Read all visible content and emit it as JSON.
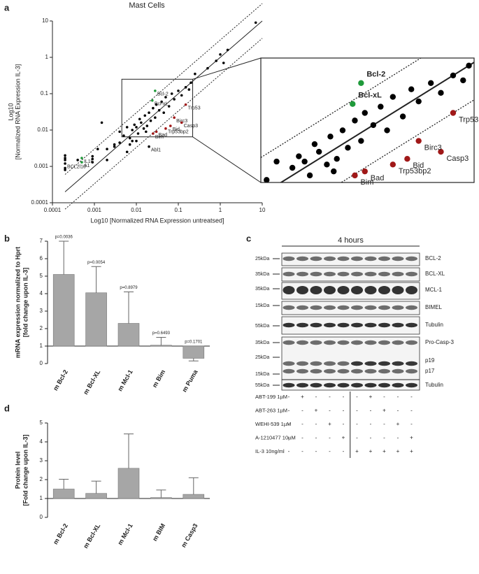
{
  "panels": [
    "a",
    "b",
    "c",
    "d"
  ],
  "chart_data": [
    {
      "type": "scatter",
      "title": "Mast Cells",
      "x_label": "Log10 [Normalized RNA Expression untreatsed]",
      "y_label": [
        "Log10",
        "[Normalized RNA Expression IL-3]"
      ],
      "log_x": true,
      "log_y": true,
      "xlim": [
        0.0001,
        10
      ],
      "ylim": [
        0.0001,
        10
      ],
      "xticks": [
        0.0001,
        0.001,
        0.01,
        0.1,
        1,
        10
      ],
      "yticks": [
        0.0001,
        0.001,
        0.01,
        0.1,
        1,
        10
      ],
      "zoom": {
        "xlim": [
          0.0045,
          0.22
        ],
        "ylim": [
          0.0065,
          0.25
        ]
      },
      "series": [
        {
          "color": "#000000",
          "x": [
            0.0002,
            0.02,
            0.0002,
            0.0002,
            0.0002,
            0.0002,
            0.0002,
            0.0004,
            0.0009,
            0.0009,
            0.0009,
            0.0012,
            0.0015,
            0.002,
            0.002,
            0.003,
            0.003,
            0.004,
            0.004,
            0.005,
            0.006,
            0.007,
            0.008,
            0.008,
            0.009,
            0.01,
            0.011,
            0.012,
            0.013,
            0.015,
            0.016,
            0.017,
            0.018,
            0.02,
            0.022,
            0.025,
            0.028,
            0.03,
            0.035,
            0.04,
            0.045,
            0.05,
            0.06,
            0.07,
            0.08,
            0.1,
            0.12,
            0.15,
            0.18,
            0.2,
            0.25,
            0.5,
            0.8,
            1,
            1.5,
            1.2,
            7,
            0.006,
            0.007,
            0.01
          ],
          "y": [
            0.0012,
            0.0035,
            0.0015,
            0.0017,
            0.002,
            0.0009,
            0.0008,
            0.0015,
            0.0013,
            0.0016,
            0.0019,
            0.003,
            0.016,
            0.0015,
            0.003,
            0.0035,
            0.004,
            0.0045,
            0.009,
            0.007,
            0.012,
            0.006,
            0.01,
            0.005,
            0.014,
            0.012,
            0.008,
            0.02,
            0.016,
            0.011,
            0.025,
            0.009,
            0.013,
            0.03,
            0.018,
            0.04,
            0.022,
            0.05,
            0.035,
            0.06,
            0.03,
            0.08,
            0.045,
            0.1,
            0.07,
            0.12,
            0.09,
            0.15,
            0.13,
            0.2,
            0.35,
            0.5,
            0.8,
            1.2,
            1.6,
            0.7,
            9,
            0.0025,
            0.004,
            0.005
          ],
          "labels": [
            "BCL2l10",
            "Abl1",
            null,
            null,
            null,
            null,
            null,
            null,
            null,
            null,
            null,
            null,
            null,
            null,
            null,
            null,
            null,
            null,
            null,
            null,
            null,
            null,
            null,
            null,
            null,
            null,
            null,
            null,
            null,
            null,
            null,
            null,
            null,
            null,
            null,
            null,
            null,
            null,
            null,
            null,
            null,
            null,
            null,
            null,
            null,
            null,
            null,
            null,
            null,
            null,
            null,
            null,
            null,
            null,
            null,
            null,
            null,
            null,
            null,
            null
          ]
        },
        {
          "color": "#1f9a3a",
          "x": [
            0.028,
            0.024,
            0.0005,
            0.0005
          ],
          "y": [
            0.12,
            0.065,
            0.0013,
            0.0017
          ],
          "labels": [
            "Bcl-2",
            "Bcl-xL",
            "A1",
            "IL10"
          ]
        },
        {
          "color": "#a01818",
          "x": [
            0.15,
            0.08,
            0.12,
            0.065,
            0.05,
            0.03,
            0.025
          ],
          "y": [
            0.05,
            0.022,
            0.016,
            0.013,
            0.011,
            0.009,
            0.008
          ],
          "labels": [
            "Trp53",
            "Birc3",
            "Casp3",
            "Bid",
            "Trp53bp2",
            "Bad",
            "Bim"
          ]
        }
      ]
    },
    {
      "type": "bar",
      "y_label": [
        "mRNA expression normalized to Hprt",
        "[fold change upon IL-3]"
      ],
      "categories": [
        "m Bcl-2",
        "m Bcl-XL",
        "m Mcl-1",
        "m Bim",
        "m Puma"
      ],
      "values": [
        5.1,
        4.05,
        2.3,
        1.05,
        0.3
      ],
      "errors": [
        1.9,
        1.5,
        1.8,
        0.45,
        0.15
      ],
      "annotations": [
        "p=0.0036",
        "p=0.0054",
        "p=0.8979",
        "p=0.6493",
        "p=0.1701"
      ],
      "baseline": 1,
      "color": "#a6a6a6",
      "ylim": [
        0,
        7
      ],
      "yticks": [
        0,
        1,
        2,
        3,
        4,
        5,
        6,
        7
      ]
    },
    {
      "type": "bar",
      "y_label": [
        "Protein level",
        "[Fold change upon IL-3]"
      ],
      "categories": [
        "m Bcl-2",
        "m Bcl-XL",
        "m Mcl-1",
        "m BIM",
        "m Casp3"
      ],
      "values": [
        1.5,
        1.27,
        2.6,
        1.05,
        1.22
      ],
      "errors": [
        0.52,
        0.65,
        1.82,
        0.4,
        0.88
      ],
      "baseline": 1,
      "color": "#a6a6a6",
      "ylim": [
        0,
        5
      ],
      "yticks": [
        0,
        1,
        2,
        3,
        4,
        5
      ]
    }
  ],
  "blot": {
    "header": "4 hours",
    "rows": [
      {
        "kda": "25kDa",
        "label": "BCL-2"
      },
      {
        "kda": "35kDa",
        "label": "BCL-XL"
      },
      {
        "kda": "35kDa",
        "label": "MCL-1"
      },
      {
        "kda": "15kDa",
        "label": "BIMEL"
      },
      {
        "kda": "55kDa",
        "label": "Tubulin"
      },
      {
        "kda": "35kDa",
        "label": "Pro-Casp-3"
      },
      {
        "kda": "25kDa",
        "label": "p19"
      },
      {
        "kda": "15kDa",
        "label": "p17"
      },
      {
        "kda": "55kDa",
        "label": "Tubulin"
      }
    ],
    "treatments": [
      {
        "name": "ABT-199 1µM",
        "marks": [
          "-",
          "+",
          "-",
          "-",
          "-",
          "-",
          "+",
          "-",
          "-",
          "-"
        ]
      },
      {
        "name": "ABT-263 1µM",
        "marks": [
          "-",
          "-",
          "+",
          "-",
          "-",
          "-",
          "-",
          "+",
          "-",
          "-"
        ]
      },
      {
        "name": "WEHI-539 1µM",
        "marks": [
          "-",
          "-",
          "-",
          "+",
          "-",
          "-",
          "-",
          "-",
          "+",
          "-"
        ]
      },
      {
        "name": "A-1210477 10µM",
        "marks": [
          "-",
          "-",
          "-",
          "-",
          "+",
          "-",
          "-",
          "-",
          "-",
          "+"
        ]
      },
      {
        "name": "IL-3 10ng/ml",
        "marks": [
          "-",
          "-",
          "-",
          "-",
          "-",
          "+",
          "+",
          "+",
          "+",
          "+"
        ]
      }
    ]
  }
}
